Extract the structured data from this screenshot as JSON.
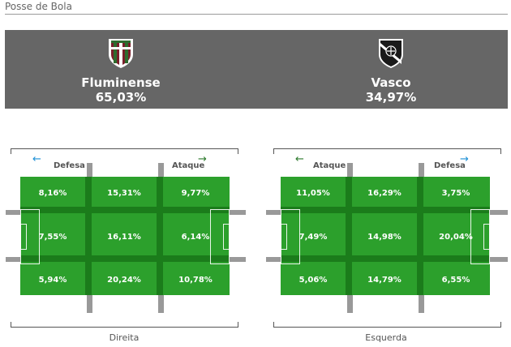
{
  "header": {
    "title": "Posse de Bola"
  },
  "teams": [
    {
      "name": "Fluminense",
      "possession": "65,03%",
      "crest_icon": "fluminense-crest-icon"
    },
    {
      "name": "Vasco",
      "possession": "34,97%",
      "crest_icon": "vasco-crest-icon"
    }
  ],
  "fields": [
    {
      "zones": {
        "left": "Defesa",
        "right": "Ataque"
      },
      "side_label": "Direita",
      "rows": [
        [
          "8,16%",
          "15,31%",
          "9,77%"
        ],
        [
          "7,55%",
          "16,11%",
          "6,14%"
        ],
        [
          "5,94%",
          "20,24%",
          "10,78%"
        ]
      ]
    },
    {
      "zones": {
        "left": "Ataque",
        "right": "Defesa"
      },
      "side_label": "Esquerda",
      "rows": [
        [
          "11,05%",
          "16,29%",
          "3,75%"
        ],
        [
          "7,49%",
          "14,98%",
          "20,04%"
        ],
        [
          "5,06%",
          "14,79%",
          "6,55%"
        ]
      ]
    }
  ],
  "colors": {
    "banner": "#666666",
    "pitch": "#2ca02c",
    "pitch_lines": "#1b7c1b",
    "arrow_blue": "#1e90d6",
    "arrow_green": "#2d7a2d"
  },
  "arrows": {
    "left": "←",
    "right": "→"
  }
}
